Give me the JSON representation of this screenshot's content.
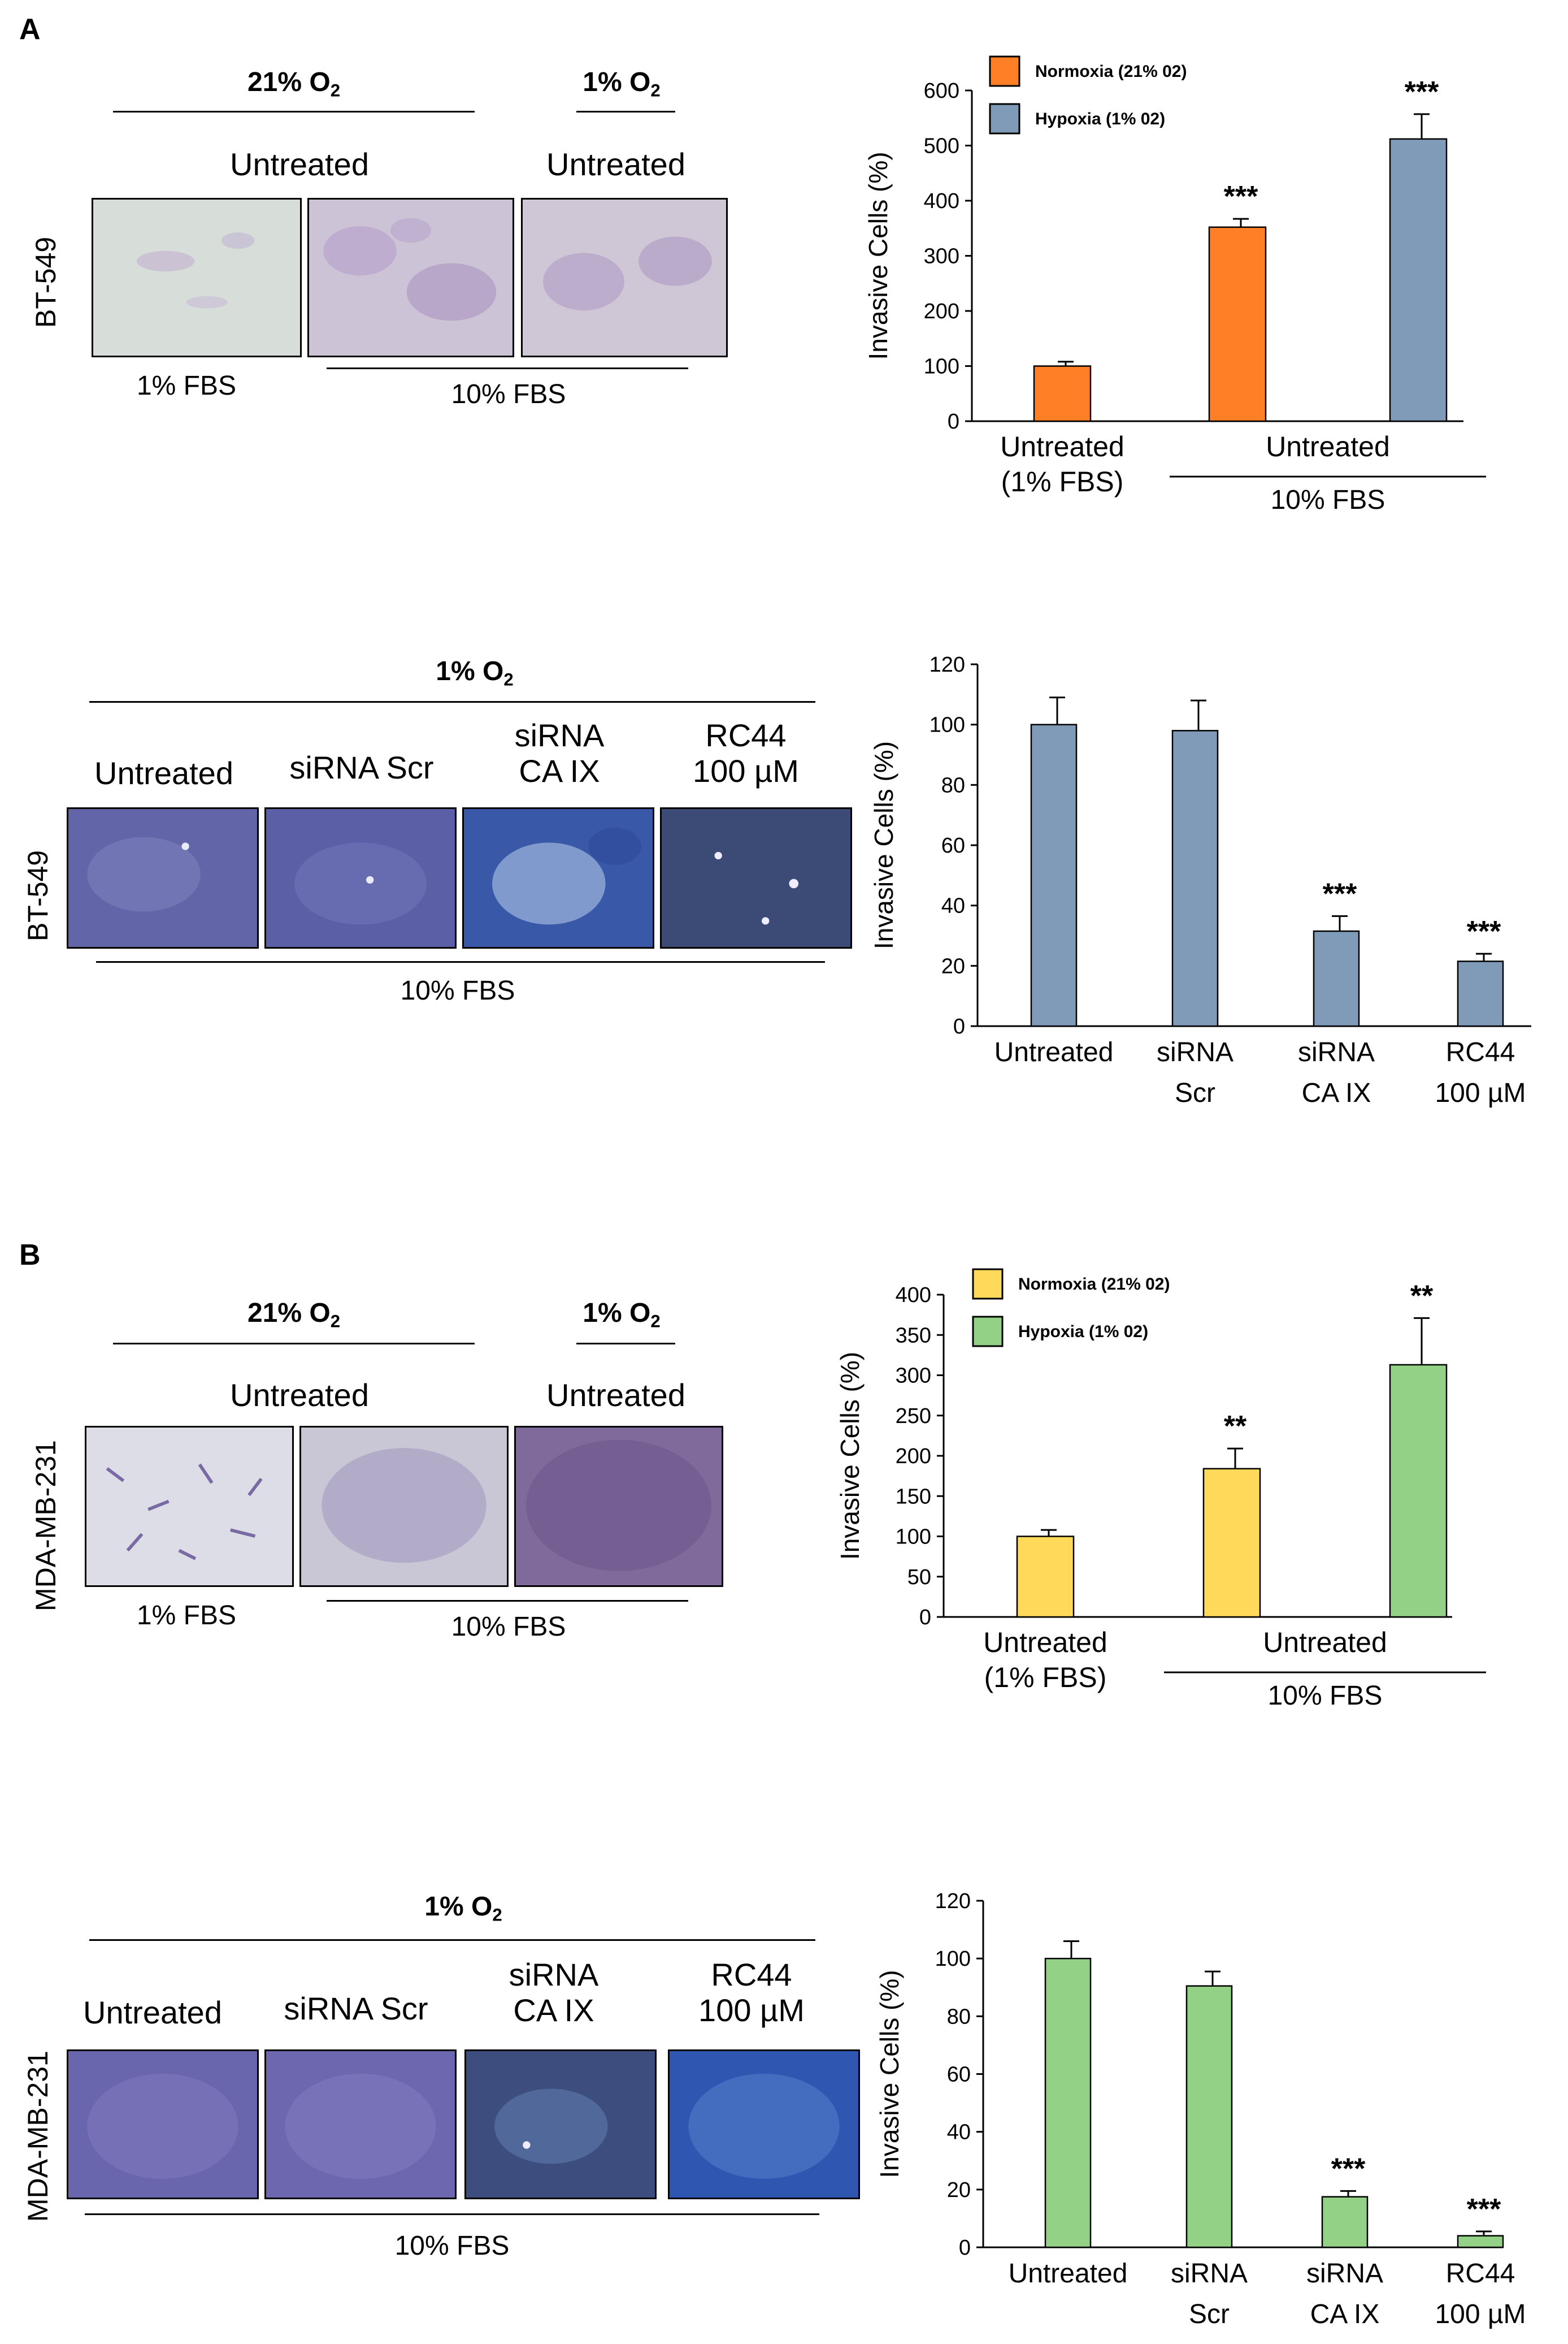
{
  "panel_letters": {
    "a": "A",
    "b": "B"
  },
  "colors": {
    "normoxia_a": "#ff7f27",
    "hypoxia_a": "#7f9bb8",
    "normoxia_b": "#ffd95a",
    "hypoxia_b": "#92d186",
    "blue_bars_a2": "#7f9bb8",
    "green_bars_b2": "#92d186"
  },
  "figures": [
    {
      "cell_line": "BT-549",
      "o2_left": "21% O",
      "o2_left_sub": "2",
      "o2_right": "1% O",
      "o2_right_sub": "2",
      "untreated_left": "Untreated",
      "untreated_right": "Untreated",
      "fbs_1": "1% FBS",
      "fbs_10": "10% FBS"
    },
    {
      "cell_line": "BT-549",
      "o2": "1% O",
      "o2_sub": "2",
      "labels": [
        "Untreated",
        "siRNA Scr",
        "siRNA\nCA IX",
        "RC44\n100 µM"
      ],
      "fbs_10": "10% FBS"
    },
    {
      "cell_line": "MDA-MB-231",
      "o2_left": "21% O",
      "o2_left_sub": "2",
      "o2_right": "1% O",
      "o2_right_sub": "2",
      "untreated_left": "Untreated",
      "untreated_right": "Untreated",
      "fbs_1": "1% FBS",
      "fbs_10": "10% FBS"
    },
    {
      "cell_line": "MDA-MB-231",
      "o2": "1% O",
      "o2_sub": "2",
      "labels": [
        "Untreated",
        "siRNA Scr",
        "siRNA\nCA IX",
        "RC44\n100 µM"
      ],
      "fbs_10": "10% FBS"
    }
  ],
  "chart_data": [
    {
      "type": "bar",
      "title": "",
      "ylabel": "Invasive Cells (%)",
      "ylim": [
        0,
        600
      ],
      "yticks": [
        0,
        100,
        200,
        300,
        400,
        500,
        600
      ],
      "categories": [
        "Untreated\n(1% FBS)",
        "Untreated"
      ],
      "group_label": "10% FBS",
      "legend": [
        "Normoxia (21% 02)",
        "Hypoxia (1% 02)"
      ],
      "legend_position": "top-left",
      "bars": [
        {
          "series": "Normoxia (21% 02)",
          "value": 100,
          "error": 8,
          "sig": ""
        },
        {
          "series": "Normoxia (21% 02)",
          "value": 352,
          "error": 15,
          "sig": "***"
        },
        {
          "series": "Hypoxia (1% 02)",
          "value": 512,
          "error": 45,
          "sig": "***"
        }
      ]
    },
    {
      "type": "bar",
      "title": "",
      "ylabel": "Invasive Cells (%)",
      "ylim": [
        0,
        120
      ],
      "yticks": [
        0,
        20,
        40,
        60,
        80,
        100,
        120
      ],
      "categories": [
        "Untreated",
        "siRNA\nScr",
        "siRNA\nCA IX",
        "RC44\n100 µM"
      ],
      "values": [
        100,
        98,
        31.5,
        21.5
      ],
      "errors": [
        9,
        10,
        5,
        2.5
      ],
      "sig": [
        "",
        "",
        "***",
        "***"
      ]
    },
    {
      "type": "bar",
      "title": "",
      "ylabel": "Invasive Cells (%)",
      "ylim": [
        0,
        400
      ],
      "yticks": [
        0,
        50,
        100,
        150,
        200,
        250,
        300,
        350,
        400
      ],
      "categories": [
        "Untreated\n(1% FBS)",
        "Untreated"
      ],
      "group_label": "10% FBS",
      "legend": [
        "Normoxia (21% 02)",
        "Hypoxia (1% 02)"
      ],
      "legend_position": "top-left",
      "bars": [
        {
          "series": "Normoxia (21% 02)",
          "value": 100,
          "error": 8,
          "sig": ""
        },
        {
          "series": "Normoxia (21% 02)",
          "value": 184,
          "error": 25,
          "sig": "**"
        },
        {
          "series": "Hypoxia (1% 02)",
          "value": 313,
          "error": 58,
          "sig": "**"
        }
      ]
    },
    {
      "type": "bar",
      "title": "",
      "ylabel": "Invasive Cells (%)",
      "ylim": [
        0,
        120
      ],
      "yticks": [
        0,
        20,
        40,
        60,
        80,
        100,
        120
      ],
      "categories": [
        "Untreated",
        "siRNA\nScr",
        "siRNA\nCA IX",
        "RC44\n100 µM"
      ],
      "values": [
        100,
        90.5,
        17.5,
        4
      ],
      "errors": [
        6,
        5,
        2,
        1.5
      ],
      "sig": [
        "",
        "",
        "***",
        "***"
      ]
    }
  ]
}
